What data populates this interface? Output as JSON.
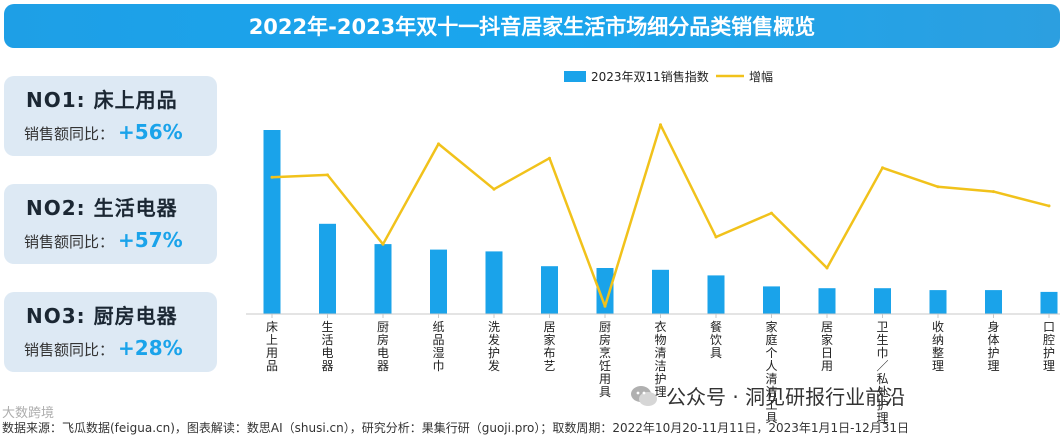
{
  "title": "2022年-2023年双十一抖音居家生活市场细分品类销售概览",
  "cards": [
    {
      "rank": "NO1:  床上用品",
      "metric_label": "销售额同比：",
      "metric_value": "+56%"
    },
    {
      "rank": "NO2:  生活电器",
      "metric_label": "销售额同比：",
      "metric_value": "+57%"
    },
    {
      "rank": "NO3:  厨房电器",
      "metric_label": "销售额同比：",
      "metric_value": "+28%"
    }
  ],
  "footer": "数据来源：飞瓜数据(feigua.cn)，图表解读：数思AI（shusi.cn），研究分析：果集行研（guoji.pro）；取数周期：2022年10月20-11月11日，2023年1月1日-12月31日",
  "footer_logo": "大数跨境",
  "wechat_label": "公众号 · 洞见研报行业前沿",
  "colors": {
    "bar": "#1aa3ea",
    "line": "#f1c21b",
    "title_bg": "#1e9fe6"
  },
  "chart_data": {
    "type": "bar",
    "title": "",
    "xlabel": "",
    "ylabel": "",
    "legend_position": "top",
    "grid": false,
    "categories": [
      "床上用品",
      "生活电器",
      "厨房电器",
      "纸品湿巾",
      "洗发护发",
      "居家布艺",
      "厨房烹饪用具",
      "衣物清洁护理",
      "餐饮具",
      "家庭个人清洁工具",
      "居家日用",
      "卫生巾私处护理",
      "收纳整理",
      "身体护理",
      "口腔护理"
    ],
    "category_labels": [
      "床上用品",
      "生活电器",
      "厨房电器",
      "纸品湿巾",
      "洗发护发",
      "居家布艺",
      "厨房烹饪用具",
      "衣物清洁护理",
      "餐饮具",
      "家庭个人清洁工具",
      "居家日用",
      "卫生巾/私处护理",
      "收纳整理",
      "身体护理",
      "口腔护理"
    ],
    "series": [
      {
        "name": "2023年双11销售指数",
        "type": "bar",
        "values": [
          100,
          49,
          38,
          35,
          34,
          26,
          25,
          24,
          21,
          15,
          14,
          14,
          13,
          13,
          12
        ]
      },
      {
        "name": "增幅",
        "type": "line",
        "values": [
          56,
          57,
          28,
          70,
          51,
          64,
          2,
          78,
          31,
          41,
          18,
          60,
          52,
          50,
          44
        ]
      }
    ],
    "ylim_bar": [
      0,
      100
    ],
    "ylim_line": [
      0,
      80
    ]
  }
}
